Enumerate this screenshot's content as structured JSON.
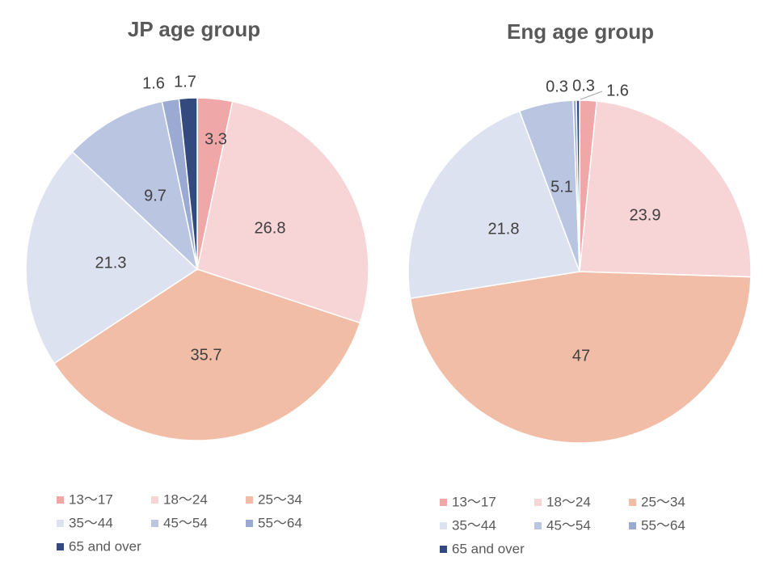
{
  "chart_data": [
    {
      "type": "pie",
      "title": "JP age group",
      "categories": [
        "13～17",
        "18～24",
        "25～34",
        "35～44",
        "45～54",
        "55～64",
        "65 and over"
      ],
      "values": [
        3.3,
        26.8,
        35.7,
        21.3,
        9.7,
        1.6,
        1.7
      ],
      "data_labels": [
        "3.3",
        "26.8",
        "35.7",
        "21.3",
        "9.7",
        "1.6",
        "1.7"
      ],
      "legend_placement": "bottom",
      "colors": [
        "#EFA7A8",
        "#F7D4D5",
        "#F2BDA6",
        "#DDE2F0",
        "#B9C5E1",
        "#9AAAD2",
        "#344A7E"
      ]
    },
    {
      "type": "pie",
      "title": "Eng age group",
      "categories": [
        "13～17",
        "18～24",
        "25～34",
        "35～44",
        "45～54",
        "55～64",
        "65 and over"
      ],
      "values": [
        1.6,
        23.9,
        47,
        21.8,
        5.1,
        0.3,
        0.3
      ],
      "data_labels": [
        "1.6",
        "23.9",
        "47",
        "21.8",
        "5.1",
        "0.3",
        "0.3"
      ],
      "legend_placement": "bottom",
      "colors": [
        "#EFA7A8",
        "#F7D4D5",
        "#F2BDA6",
        "#DDE2F0",
        "#B9C5E1",
        "#9AAAD2",
        "#344A7E"
      ]
    }
  ]
}
